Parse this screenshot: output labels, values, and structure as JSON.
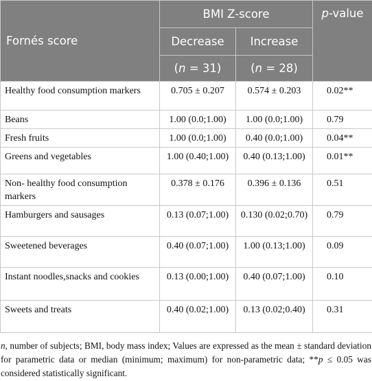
{
  "table": {
    "header": {
      "row_label": "Fornés score",
      "group": "BMI Z-score",
      "pvalue": [
        {
          "text": "p",
          "italic": true
        },
        {
          "text": "-value",
          "italic": false
        }
      ],
      "columns": [
        "Decrease",
        "Increase"
      ],
      "counts": [
        [
          {
            "text": "(",
            "italic": false
          },
          {
            "text": "n",
            "italic": true
          },
          {
            "text": " = 31)",
            "italic": false
          }
        ],
        [
          {
            "text": "(",
            "italic": false
          },
          {
            "text": "n",
            "italic": true
          },
          {
            "text": " = 28)",
            "italic": false
          }
        ]
      ]
    },
    "rows": [
      [
        "Healthy food consumption markers",
        "0.705 ± 0.207",
        "0.574 ± 0.203",
        "0.02**"
      ],
      [
        "Beans",
        "1.00 (0.0;1.00)",
        "1.00 (0.0;1.00)",
        "0.79"
      ],
      [
        "Fresh fruits",
        "1.00 (0.0;1.00)",
        "0.40 (0.0;1.00)",
        "0.04**"
      ],
      [
        "Greens and vegetables",
        "1.00 (0.40;1.00)",
        "0.40 (0.13;1.00)",
        "0.01**"
      ],
      [
        "Non- healthy food consumption markers",
        "0.378 ± 0.176",
        "0.396 ± 0.136",
        "0.51"
      ],
      [
        "Hamburgers and sausages",
        "0.13 (0.07;1.00)",
        "0.130 (0.02;0.70)",
        "0.79"
      ],
      [
        "Sweetened beverages",
        "0.40 (0.07;1.00)",
        "1.00 (0.13;1.00)",
        "0.09"
      ],
      [
        "Instant noodles,snacks and cookies",
        "0.13 (0.00;1.00)",
        "0.40 (0.07;1.00)",
        "0.10"
      ],
      [
        "Sweets and treats",
        "0.40 (0.02;1.00)",
        "0.13 (0.02;0.40)",
        "0.31"
      ]
    ],
    "footnote": [
      {
        "text": "n",
        "italic": true
      },
      {
        "text": ", number of subjects; BMI, body mass index; Values are expressed as the mean ± standard deviation for parametric data or median (minimum; maximum) for non-parametric data; **",
        "italic": false
      },
      {
        "text": "p",
        "italic": true
      },
      {
        "text": " ≤ 0.05 was considered statistically significant.",
        "italic": false
      }
    ]
  }
}
